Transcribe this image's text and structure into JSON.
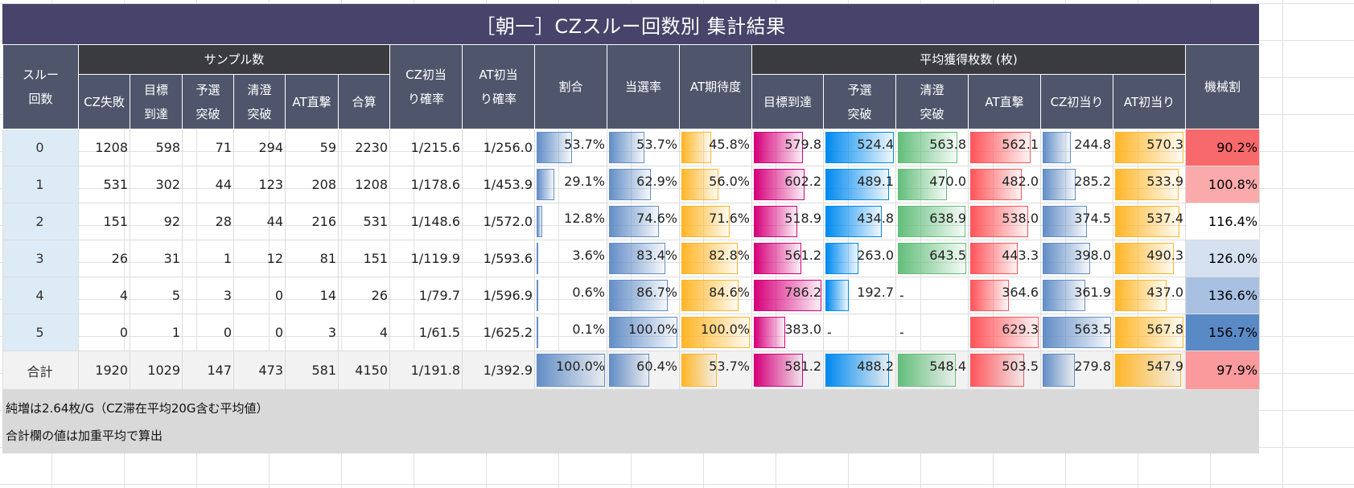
{
  "title": "［朝一］CZスルー回数別 集計結果",
  "headers": {
    "thru": "スルー回数",
    "samples_group": "サンプル数",
    "samples": [
      "CZ失敗",
      "目標到達",
      "予選突破",
      "清澄突破",
      "AT直撃",
      "合算"
    ],
    "cz_rate": "CZ初当り確率",
    "at_rate": "AT初当り確率",
    "ratio": "割合",
    "win_rate": "当選率",
    "at_expect": "AT期待度",
    "avg_group": "平均獲得枚数 (枚)",
    "avg": [
      "目標到達",
      "予選突破",
      "清澄突破",
      "AT直撃",
      "CZ初当り",
      "AT初当り"
    ],
    "payout": "機械割"
  },
  "bar_colors": {
    "ratio": "#638ec6",
    "win_rate": "#638ec6",
    "at_expect": "#ffb628",
    "avg": [
      "#d6007b",
      "#008aef",
      "#63be7b",
      "#ff555a",
      "#638ec6",
      "#ffb628"
    ]
  },
  "rows": [
    {
      "label": "0",
      "samples": [
        "1208",
        "598",
        "71",
        "294",
        "59",
        "2230"
      ],
      "cz_rate": "1/215.6",
      "at_rate": "1/256.0",
      "ratio": "53.7%",
      "win_rate": "53.7%",
      "at_expect": "45.8%",
      "avg": [
        "579.8",
        "524.4",
        "563.8",
        "562.1",
        "244.8",
        "570.3"
      ],
      "payout": "90.2%",
      "payout_color": "#f8696b"
    },
    {
      "label": "1",
      "samples": [
        "531",
        "302",
        "44",
        "123",
        "208",
        "1208"
      ],
      "cz_rate": "1/178.6",
      "at_rate": "1/453.9",
      "ratio": "29.1%",
      "win_rate": "62.9%",
      "at_expect": "56.0%",
      "avg": [
        "602.2",
        "489.1",
        "470.0",
        "482.0",
        "285.2",
        "533.9"
      ],
      "payout": "100.8%",
      "payout_color": "#fbaaac"
    },
    {
      "label": "2",
      "samples": [
        "151",
        "92",
        "28",
        "44",
        "216",
        "531"
      ],
      "cz_rate": "1/148.6",
      "at_rate": "1/572.0",
      "ratio": "12.8%",
      "win_rate": "74.6%",
      "at_expect": "71.6%",
      "avg": [
        "518.9",
        "434.8",
        "638.9",
        "538.0",
        "374.5",
        "537.4"
      ],
      "payout": "116.4%",
      "payout_color": "#ffffff"
    },
    {
      "label": "3",
      "samples": [
        "26",
        "31",
        "1",
        "12",
        "81",
        "151"
      ],
      "cz_rate": "1/119.9",
      "at_rate": "1/593.6",
      "ratio": "3.6%",
      "win_rate": "83.4%",
      "at_expect": "82.8%",
      "avg": [
        "561.2",
        "263.0",
        "643.5",
        "443.3",
        "398.0",
        "490.3"
      ],
      "payout": "126.0%",
      "payout_color": "#d5e1f1"
    },
    {
      "label": "4",
      "samples": [
        "4",
        "5",
        "3",
        "0",
        "14",
        "26"
      ],
      "cz_rate": "1/79.7",
      "at_rate": "1/596.9",
      "ratio": "0.6%",
      "win_rate": "86.7%",
      "at_expect": "84.6%",
      "avg": [
        "786.2",
        "192.7",
        "-",
        "364.6",
        "361.9",
        "437.0"
      ],
      "payout": "136.6%",
      "payout_color": "#a8c0e2"
    },
    {
      "label": "5",
      "samples": [
        "0",
        "1",
        "0",
        "0",
        "3",
        "4"
      ],
      "cz_rate": "1/61.5",
      "at_rate": "1/625.2",
      "ratio": "0.1%",
      "win_rate": "100.0%",
      "at_expect": "100.0%",
      "avg": [
        "383.0",
        "-",
        "-",
        "629.3",
        "563.5",
        "567.8"
      ],
      "payout": "156.7%",
      "payout_color": "#5a8ac6"
    }
  ],
  "total": {
    "label": "合計",
    "samples": [
      "1920",
      "1029",
      "147",
      "473",
      "581",
      "4150"
    ],
    "cz_rate": "1/191.8",
    "at_rate": "1/392.9",
    "ratio": "100.0%",
    "win_rate": "60.4%",
    "at_expect": "53.7%",
    "avg": [
      "581.2",
      "488.2",
      "548.4",
      "503.5",
      "279.8",
      "547.9"
    ],
    "payout": "97.9%",
    "payout_color": "#fa9a9c"
  },
  "notes": [
    "純増は2.64枚/G（CZ滞在平均20G含む平均値）",
    "合計欄の値は加重平均で算出"
  ]
}
